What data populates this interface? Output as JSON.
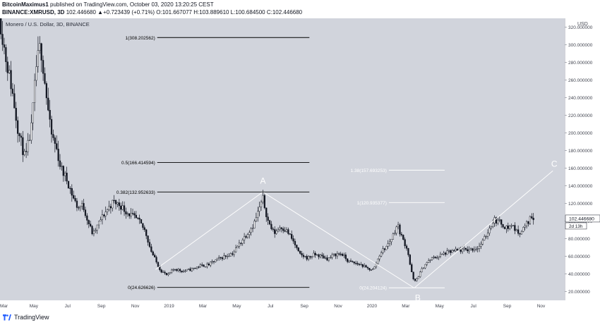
{
  "header": {
    "author": "BitcoinMaximus1",
    "published_text": "published on TradingView.com, October 03, 2020 13:20:25 CEST",
    "symbol": "BINANCE:XMRUSD, 3D",
    "ohlc": "102.446680 ▲+0.723439 (+0.71%) O:101.667077 H:103.889610 L:100.684500 C:102.446680"
  },
  "chart_title": "Monero / U.S. Dollar, 3D, BINANCE",
  "currency": "USD",
  "footer": {
    "brand": "TradingView"
  },
  "colors": {
    "background": "#d1d4dc",
    "candle": "#131722",
    "wave_line": "#ffffff",
    "fib_line": "#000000",
    "ext_line": "#ffffff"
  },
  "chart_data": {
    "type": "candlestick",
    "title": "Monero / U.S. Dollar, 3D, BINANCE",
    "ylim": [
      10,
      330
    ],
    "y_ticks": [
      "320.000000",
      "300.000000",
      "280.000000",
      "260.000000",
      "240.000000",
      "220.000000",
      "200.000000",
      "180.000000",
      "160.000000",
      "140.000000",
      "120.000000",
      "100.000000",
      "80.000000",
      "60.000000",
      "40.000000",
      "20.000000"
    ],
    "y_tick_values": [
      320,
      300,
      280,
      260,
      240,
      220,
      200,
      180,
      160,
      140,
      120,
      100,
      80,
      60,
      40,
      20
    ],
    "x_ticks": [
      "Mar",
      "May",
      "Jul",
      "Sep",
      "Nov",
      "2019",
      "Mar",
      "May",
      "Jul",
      "Sep",
      "Nov",
      "2020",
      "Mar",
      "May",
      "Jul",
      "Sep",
      "Nov"
    ],
    "x_tick_months": [
      0,
      2,
      4,
      6,
      8,
      10,
      12,
      14,
      16,
      18,
      20,
      22,
      24,
      26,
      28,
      30,
      32
    ],
    "x_domain_months": [
      0,
      33.4
    ],
    "last_price": "102.446680",
    "last_price_value": 102.45,
    "countdown": "2d 13h",
    "price_path": [
      [
        0,
        330
      ],
      [
        0.3,
        290
      ],
      [
        0.7,
        250
      ],
      [
        1.1,
        200
      ],
      [
        1.5,
        170
      ],
      [
        1.85,
        205
      ],
      [
        2.15,
        275
      ],
      [
        2.4,
        300
      ],
      [
        2.7,
        250
      ],
      [
        3.0,
        200
      ],
      [
        3.3,
        185
      ],
      [
        3.6,
        160
      ],
      [
        4.0,
        145
      ],
      [
        4.3,
        128
      ],
      [
        4.6,
        115
      ],
      [
        4.9,
        118
      ],
      [
        5.2,
        100
      ],
      [
        5.5,
        84
      ],
      [
        5.9,
        100
      ],
      [
        6.3,
        112
      ],
      [
        6.7,
        122
      ],
      [
        7.1,
        118
      ],
      [
        7.5,
        110
      ],
      [
        7.8,
        106
      ],
      [
        8.2,
        100
      ],
      [
        8.6,
        88
      ],
      [
        8.9,
        68
      ],
      [
        9.2,
        55
      ],
      [
        9.5,
        44
      ],
      [
        9.9,
        38
      ],
      [
        10.3,
        46
      ],
      [
        10.8,
        43
      ],
      [
        11.3,
        45
      ],
      [
        11.8,
        49
      ],
      [
        12.3,
        50
      ],
      [
        12.8,
        56
      ],
      [
        13.3,
        60
      ],
      [
        13.8,
        64
      ],
      [
        14.3,
        78
      ],
      [
        14.7,
        88
      ],
      [
        15.0,
        96
      ],
      [
        15.3,
        112
      ],
      [
        15.55,
        125
      ],
      [
        15.85,
        100
      ],
      [
        16.2,
        86
      ],
      [
        16.6,
        94
      ],
      [
        17.0,
        88
      ],
      [
        17.4,
        75
      ],
      [
        17.7,
        62
      ],
      [
        18.2,
        58
      ],
      [
        18.6,
        62
      ],
      [
        19.0,
        60
      ],
      [
        19.4,
        57
      ],
      [
        19.8,
        62
      ],
      [
        20.2,
        63
      ],
      [
        20.6,
        54
      ],
      [
        21.0,
        52
      ],
      [
        21.4,
        50
      ],
      [
        21.7,
        46
      ],
      [
        22.1,
        45
      ],
      [
        22.5,
        64
      ],
      [
        22.9,
        72
      ],
      [
        23.2,
        82
      ],
      [
        23.5,
        96
      ],
      [
        23.8,
        80
      ],
      [
        24.1,
        68
      ],
      [
        24.3,
        45
      ],
      [
        24.5,
        30
      ],
      [
        24.7,
        36
      ],
      [
        25.1,
        50
      ],
      [
        25.5,
        57
      ],
      [
        25.9,
        60
      ],
      [
        26.4,
        64
      ],
      [
        26.9,
        66
      ],
      [
        27.4,
        67
      ],
      [
        27.9,
        68
      ],
      [
        28.3,
        70
      ],
      [
        28.6,
        78
      ],
      [
        28.9,
        90
      ],
      [
        29.2,
        102
      ],
      [
        29.6,
        98
      ],
      [
        30.0,
        92
      ],
      [
        30.3,
        96
      ],
      [
        30.6,
        86
      ],
      [
        30.9,
        90
      ],
      [
        31.2,
        98
      ],
      [
        31.45,
        106
      ],
      [
        31.6,
        102
      ]
    ],
    "wave": {
      "labels": [
        "A",
        "B",
        "C"
      ],
      "points": [
        [
          9.2,
          45
        ],
        [
          15.55,
          133
        ],
        [
          24.5,
          24
        ],
        [
          32.7,
          157
        ]
      ]
    },
    "fib_levels": [
      {
        "label": "1(308.202562)",
        "value": 308.202562,
        "x_start": 9.3,
        "x_end": 18.3
      },
      {
        "label": "0.5(166.414594)",
        "value": 166.414594,
        "x_start": 9.3,
        "x_end": 18.3
      },
      {
        "label": "0.382(132.952633)",
        "value": 132.952633,
        "x_start": 9.3,
        "x_end": 18.3
      },
      {
        "label": "0(24.626626)",
        "value": 24.626626,
        "x_start": 9.3,
        "x_end": 18.3
      }
    ],
    "ext_levels": [
      {
        "label": "1.38(157.693253)",
        "value": 157.693253,
        "x_start": 23.0,
        "x_end": 26.3
      },
      {
        "label": "1(120.935377)",
        "value": 120.935377,
        "x_start": 23.0,
        "x_end": 26.3
      },
      {
        "label": "0(24.204124)",
        "value": 24.204124,
        "x_start": 23.0,
        "x_end": 26.3
      }
    ]
  }
}
